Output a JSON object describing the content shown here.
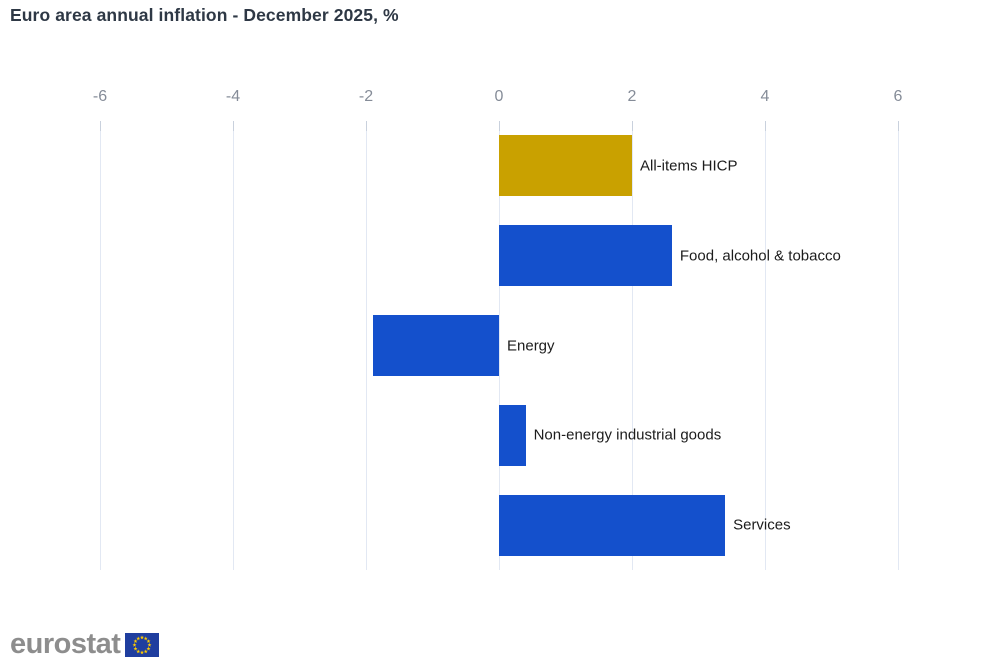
{
  "chart_data": {
    "type": "bar",
    "orientation": "horizontal",
    "title": "Euro area annual inflation - December 2025, %",
    "categories": [
      "All-items HICP",
      "Food, alcohol & tobacco",
      "Energy",
      "Non-energy industrial goods",
      "Services"
    ],
    "values": [
      2.0,
      2.6,
      -1.9,
      0.4,
      3.4
    ],
    "bar_colors": [
      "#c9a100",
      "#1450cc",
      "#1450cc",
      "#1450cc",
      "#1450cc"
    ],
    "xlim": [
      -6,
      6
    ],
    "x_ticks": [
      -6,
      -4,
      -2,
      0,
      2,
      4,
      6
    ],
    "grid": true,
    "legend": false,
    "value_axis_position": "top"
  },
  "footer": {
    "logo_text": "eurostat"
  },
  "colors": {
    "accent_gold": "#c9a100",
    "accent_blue": "#1450cc",
    "title": "#2e3845",
    "tick_label": "#858c98",
    "bar_label": "#1c1c1c",
    "gridline": "#e2e8f3",
    "flag_blue": "#1f3e9f",
    "star_gold": "#ffcc00"
  }
}
